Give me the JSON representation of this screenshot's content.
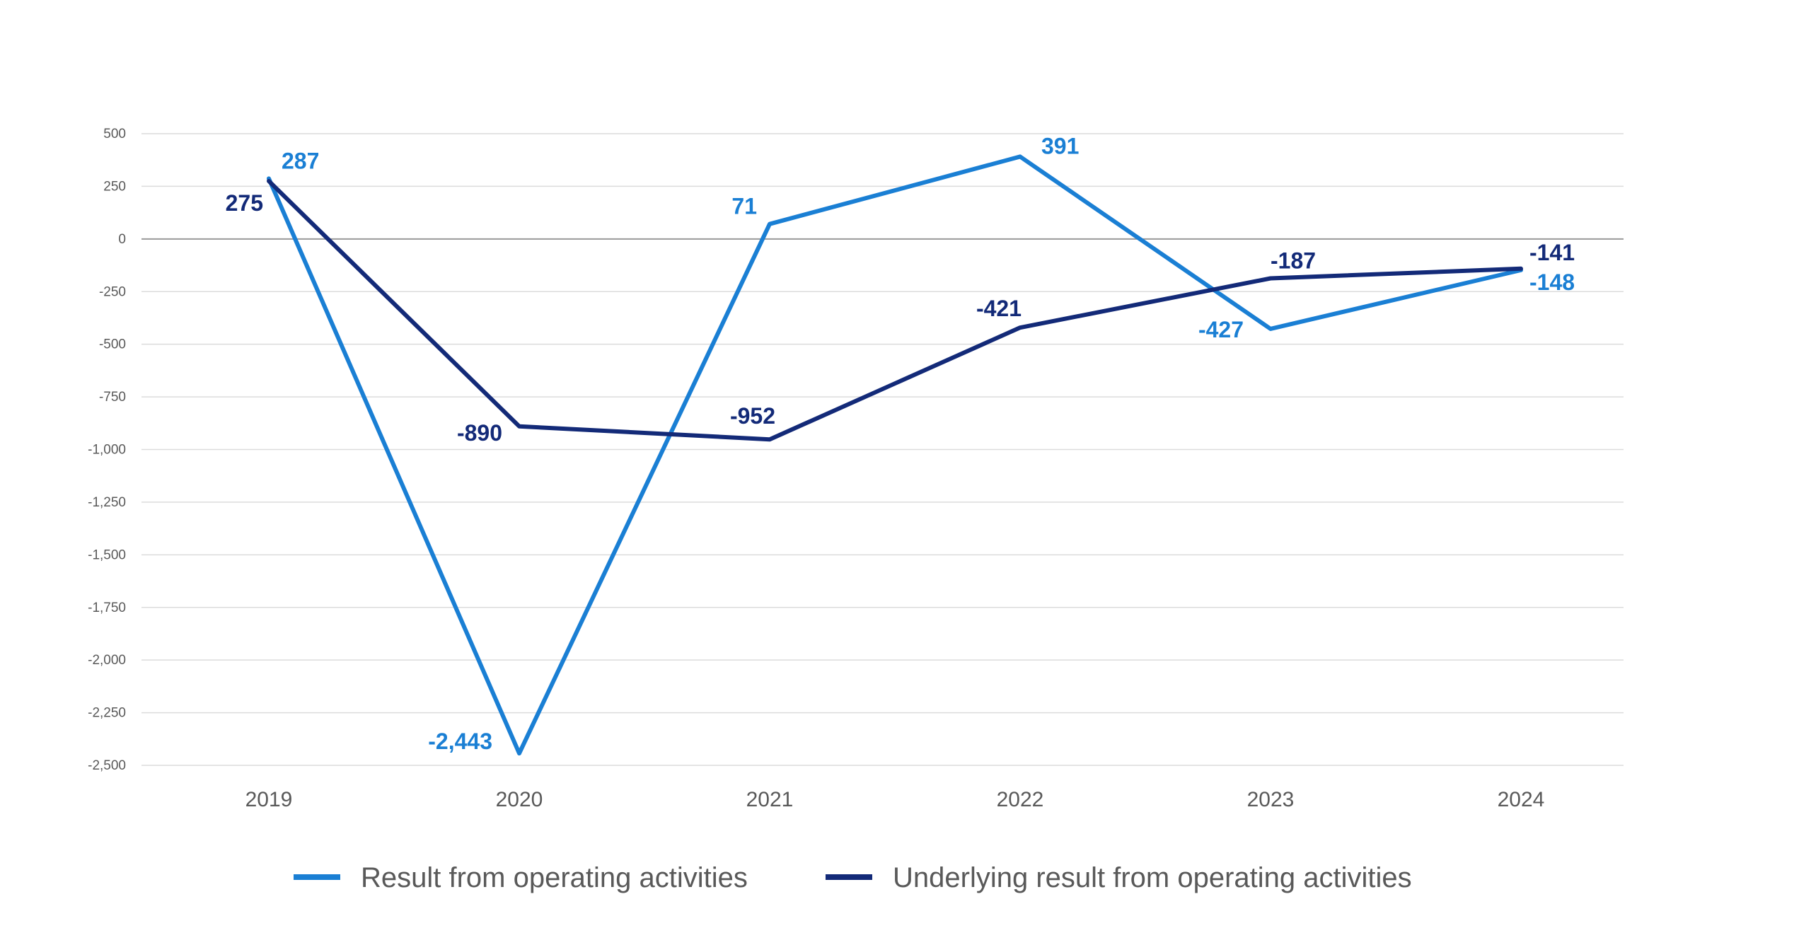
{
  "chart_data": {
    "type": "line",
    "title": "",
    "xlabel": "",
    "ylabel": "",
    "categories": [
      "2019",
      "2020",
      "2021",
      "2022",
      "2023",
      "2024"
    ],
    "ylim": [
      -2500,
      500
    ],
    "y_ticks": [
      500,
      250,
      0,
      -250,
      -500,
      -750,
      -1000,
      -1250,
      -1500,
      -1750,
      -2000,
      -2250,
      -2500
    ],
    "y_tick_labels": [
      "500",
      "250",
      "0",
      "-250",
      "-500",
      "-750",
      "-1,000",
      "-1,250",
      "-1,500",
      "-1,750",
      "-2,000",
      "-2,250",
      "-2,500"
    ],
    "grid": true,
    "legend_position": "bottom",
    "series": [
      {
        "name": "Result from operating activities",
        "color": "#1a7fd4",
        "values": [
          287,
          -2443,
          71,
          391,
          -427,
          -148
        ],
        "labels": [
          "287",
          "-2,443",
          "71",
          "391",
          "-427",
          "-148"
        ]
      },
      {
        "name": "Underlying result from operating activities",
        "color": "#132a78",
        "values": [
          275,
          -890,
          -952,
          -421,
          -187,
          -141
        ],
        "labels": [
          "275",
          "-890",
          "-952",
          "-421",
          "-187",
          "-141"
        ]
      }
    ]
  }
}
